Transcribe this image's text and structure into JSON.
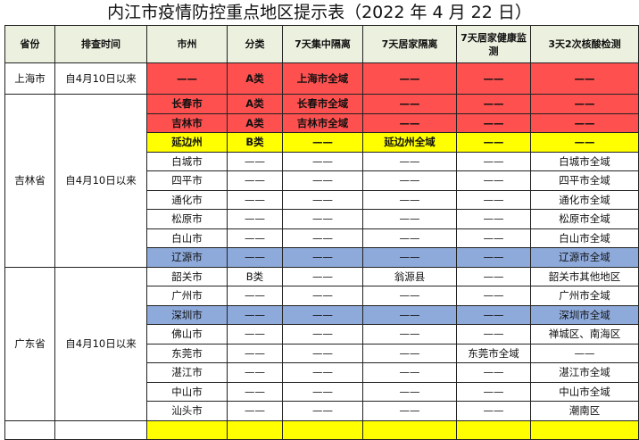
{
  "title": "内江市疫情防控重点地区提示表（2022 年 4 月 22 日）",
  "headers": [
    "省份",
    "排查时间",
    "市州",
    "分类",
    "7天集中隔离",
    "7天居家隔离",
    "7天居家健康监测",
    "3天2次核酸检测"
  ],
  "colors": {
    "red": "#ff5050",
    "yellow": "#ffff00",
    "blue": "#8eaadb",
    "header": "#ebf1de"
  },
  "groups": [
    {
      "province": "上海市",
      "time": "自4月10日以来",
      "rows": [
        {
          "city": "——",
          "category": "A类",
          "central": "上海市全域",
          "home": "——",
          "health": "——",
          "test": "——",
          "highlight": "red"
        }
      ]
    },
    {
      "province": "吉林省",
      "time": "自4月10日以来",
      "rows": [
        {
          "city": "长春市",
          "category": "A类",
          "central": "长春市全域",
          "home": "——",
          "health": "——",
          "test": "——",
          "highlight": "red"
        },
        {
          "city": "吉林市",
          "category": "A类",
          "central": "吉林市全域",
          "home": "——",
          "health": "——",
          "test": "——",
          "highlight": "red"
        },
        {
          "city": "延边州",
          "category": "B类",
          "central": "——",
          "home": "延边州全域",
          "health": "——",
          "test": "——",
          "highlight": "yellow"
        },
        {
          "city": "白城市",
          "category": "——",
          "central": "——",
          "home": "——",
          "health": "——",
          "test": "白城市全域",
          "highlight": ""
        },
        {
          "city": "四平市",
          "category": "——",
          "central": "——",
          "home": "——",
          "health": "——",
          "test": "四平市全域",
          "highlight": ""
        },
        {
          "city": "通化市",
          "category": "——",
          "central": "——",
          "home": "——",
          "health": "——",
          "test": "通化市全域",
          "highlight": ""
        },
        {
          "city": "松原市",
          "category": "——",
          "central": "——",
          "home": "——",
          "health": "——",
          "test": "松原市全域",
          "highlight": ""
        },
        {
          "city": "白山市",
          "category": "——",
          "central": "——",
          "home": "——",
          "health": "——",
          "test": "白山市全域",
          "highlight": ""
        },
        {
          "city": "辽源市",
          "category": "——",
          "central": "——",
          "home": "——",
          "health": "——",
          "test": "辽源市全域",
          "highlight": "blue"
        }
      ]
    },
    {
      "province": "广东省",
      "time": "自4月10日以来",
      "rows": [
        {
          "city": "韶关市",
          "category": "B类",
          "central": "——",
          "home": "翁源县",
          "health": "——",
          "test": "韶关市其他地区",
          "highlight": ""
        },
        {
          "city": "广州市",
          "category": "——",
          "central": "——",
          "home": "——",
          "health": "——",
          "test": "广州市全域",
          "highlight": ""
        },
        {
          "city": "深圳市",
          "category": "——",
          "central": "——",
          "home": "——",
          "health": "——",
          "test": "深圳市全域",
          "highlight": "blue"
        },
        {
          "city": "佛山市",
          "category": "——",
          "central": "——",
          "home": "——",
          "health": "——",
          "test": "禅城区、南海区",
          "highlight": ""
        },
        {
          "city": "东莞市",
          "category": "——",
          "central": "——",
          "home": "——",
          "health": "东莞市全域",
          "test": "——",
          "highlight": ""
        },
        {
          "city": "湛江市",
          "category": "——",
          "central": "——",
          "home": "——",
          "health": "——",
          "test": "湛江市全域",
          "highlight": ""
        },
        {
          "city": "中山市",
          "category": "——",
          "central": "——",
          "home": "——",
          "health": "——",
          "test": "中山市全域",
          "highlight": ""
        },
        {
          "city": "汕头市",
          "category": "——",
          "central": "——",
          "home": "——",
          "health": "——",
          "test": "潮南区",
          "highlight": ""
        }
      ]
    }
  ]
}
